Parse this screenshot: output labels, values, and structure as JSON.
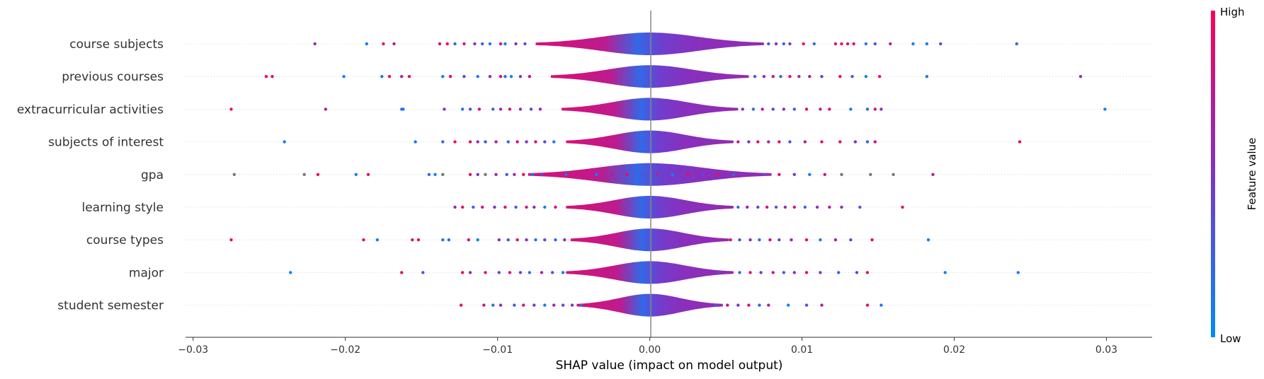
{
  "chart_data": {
    "type": "scatter",
    "subtype": "shap-violin-beeswarm",
    "title": "",
    "xlabel": "SHAP value (impact on model output)",
    "ylabel": "",
    "xlim": [
      -0.0305,
      0.033
    ],
    "xticks": [
      -0.03,
      -0.02,
      -0.01,
      0.0,
      0.01,
      0.02,
      0.03
    ],
    "xtick_labels": [
      "−0.03",
      "−0.02",
      "−0.01",
      "0.00",
      "0.01",
      "0.02",
      "0.03"
    ],
    "grid": false,
    "colorbar": {
      "title": "Feature value",
      "high_label": "High",
      "low_label": "Low",
      "high_color": "#ff0052",
      "low_color": "#008bfb"
    },
    "colors": {
      "high": "#ff0052",
      "low": "#008bfb",
      "mid": "#7b35c9",
      "missing": "#777777"
    },
    "features": [
      {
        "name": "course subjects",
        "spread": 0.0075,
        "points": [
          [
            -0.022,
            0.6
          ],
          [
            -0.0186,
            0.1
          ],
          [
            -0.0175,
            0.9
          ],
          [
            -0.0168,
            0.7
          ],
          [
            -0.0138,
            0.85
          ],
          [
            -0.0133,
            0.95
          ],
          [
            -0.0128,
            0.2
          ],
          [
            -0.0122,
            0.9
          ],
          [
            -0.0115,
            0.5
          ],
          [
            -0.011,
            0.3
          ],
          [
            -0.0105,
            0.1
          ],
          [
            -0.0098,
            0.8
          ],
          [
            -0.0095,
            0.05
          ],
          [
            -0.0088,
            0.6
          ],
          [
            -0.0082,
            0.4
          ],
          [
            0.0078,
            0.3
          ],
          [
            0.0083,
            0.6
          ],
          [
            0.0088,
            0.2
          ],
          [
            0.0092,
            0.5
          ],
          [
            0.0101,
            0.9
          ],
          [
            0.0108,
            0.2
          ],
          [
            0.0122,
            0.85
          ],
          [
            0.0126,
            0.95
          ],
          [
            0.013,
            0.8
          ],
          [
            0.0134,
            0.9
          ],
          [
            0.0142,
            0.1
          ],
          [
            0.0148,
            0.3
          ],
          [
            0.0158,
            0.7
          ],
          [
            0.0173,
            0.1
          ],
          [
            0.0182,
            0.05
          ],
          [
            0.0191,
            0.4
          ],
          [
            0.0241,
            0.2
          ]
        ]
      },
      {
        "name": "previous courses",
        "spread": 0.0065,
        "points": [
          [
            -0.0252,
            0.9
          ],
          [
            -0.0248,
            0.95
          ],
          [
            -0.0201,
            0.05
          ],
          [
            -0.0176,
            0.1
          ],
          [
            -0.0171,
            0.9
          ],
          [
            -0.0163,
            0.6
          ],
          [
            -0.0158,
            0.85
          ],
          [
            -0.0136,
            0.1
          ],
          [
            -0.0131,
            0.9
          ],
          [
            -0.0122,
            0.4
          ],
          [
            -0.0113,
            0.1
          ],
          [
            -0.0105,
            0.6
          ],
          [
            -0.0098,
            0.85
          ],
          [
            -0.0095,
            0.2
          ],
          [
            -0.0091,
            0.05
          ],
          [
            -0.0085,
            0.5
          ],
          [
            -0.0079,
            0.8
          ],
          [
            0.0069,
            0.3
          ],
          [
            0.0075,
            0.6
          ],
          [
            0.0081,
            0.8
          ],
          [
            0.0086,
            0.2
          ],
          [
            0.0092,
            0.9
          ],
          [
            0.0098,
            0.5
          ],
          [
            0.0105,
            0.7
          ],
          [
            0.0113,
            0.4
          ],
          [
            0.0125,
            0.9
          ],
          [
            0.0133,
            0.3
          ],
          [
            0.0142,
            0.05
          ],
          [
            0.0151,
            0.95
          ],
          [
            0.0182,
            0.1
          ],
          [
            0.0283,
            0.6
          ]
        ]
      },
      {
        "name": "extracurricular activities",
        "spread": 0.0058,
        "points": [
          [
            -0.0275,
            0.95
          ],
          [
            -0.0213,
            0.7
          ],
          [
            -0.0163,
            0.1
          ],
          [
            -0.0162,
            0.2
          ],
          [
            -0.0135,
            0.5
          ],
          [
            -0.0123,
            0.1
          ],
          [
            -0.0118,
            0.3
          ],
          [
            -0.0112,
            0.9
          ],
          [
            -0.0103,
            0.2
          ],
          [
            -0.0098,
            0.6
          ],
          [
            -0.0092,
            0.85
          ],
          [
            -0.0085,
            0.5
          ],
          [
            -0.0078,
            0.4
          ],
          [
            -0.0072,
            0.7
          ],
          [
            0.0061,
            0.5
          ],
          [
            0.0068,
            0.2
          ],
          [
            0.0074,
            0.8
          ],
          [
            0.0081,
            0.4
          ],
          [
            0.0088,
            0.6
          ],
          [
            0.0095,
            0.3
          ],
          [
            0.0103,
            0.9
          ],
          [
            0.0112,
            0.7
          ],
          [
            0.0118,
            0.85
          ],
          [
            0.0132,
            0.1
          ],
          [
            0.0143,
            0.2
          ],
          [
            0.0148,
            0.9
          ],
          [
            0.0152,
            0.5
          ],
          [
            0.0299,
            0.05
          ]
        ]
      },
      {
        "name": "subjects of interest",
        "spread": 0.0055,
        "points": [
          [
            -0.024,
            0.05
          ],
          [
            -0.0154,
            0.1
          ],
          [
            -0.0136,
            0.2
          ],
          [
            -0.0128,
            0.9
          ],
          [
            -0.0118,
            0.85
          ],
          [
            -0.0113,
            0.6
          ],
          [
            -0.0108,
            0.3
          ],
          [
            -0.0101,
            0.7
          ],
          [
            -0.0093,
            0.2
          ],
          [
            -0.0087,
            0.9
          ],
          [
            -0.0081,
            0.5
          ],
          [
            -0.0075,
            0.8
          ],
          [
            -0.0069,
            0.4
          ],
          [
            -0.0063,
            0.1
          ],
          [
            0.0058,
            0.8
          ],
          [
            0.0065,
            0.5
          ],
          [
            0.0071,
            0.9
          ],
          [
            0.0078,
            0.6
          ],
          [
            0.0085,
            0.95
          ],
          [
            0.0092,
            0.3
          ],
          [
            0.0102,
            0.7
          ],
          [
            0.0113,
            0.85
          ],
          [
            0.0125,
            0.9
          ],
          [
            0.0135,
            0.5
          ],
          [
            0.0143,
            0.2
          ],
          [
            0.0148,
            0.85
          ],
          [
            0.0243,
            0.95
          ]
        ]
      },
      {
        "name": "gpa",
        "spread": 0.008,
        "points": [
          [
            -0.0273,
            -1
          ],
          [
            -0.0227,
            -1
          ],
          [
            -0.0218,
            0.95
          ],
          [
            -0.0193,
            0.1
          ],
          [
            -0.0185,
            0.9
          ],
          [
            -0.0145,
            0.2
          ],
          [
            -0.0141,
            0.05
          ],
          [
            -0.0136,
            -1
          ],
          [
            -0.0118,
            0.85
          ],
          [
            -0.0113,
            0.5
          ],
          [
            -0.0108,
            -1
          ],
          [
            -0.0101,
            0.7
          ],
          [
            -0.0094,
            0.3
          ],
          [
            -0.0089,
            0.6
          ],
          [
            -0.0083,
            0.9
          ],
          [
            -0.0077,
            0.1
          ],
          [
            -0.0071,
            0.4
          ],
          [
            -0.0063,
            0.8
          ],
          [
            -0.0055,
            0.2
          ],
          [
            -0.0045,
            0.9
          ],
          [
            -0.0035,
            0.05
          ],
          [
            -0.0025,
            0.6
          ],
          [
            -0.0015,
            0.95
          ],
          [
            -0.0005,
            0.3
          ],
          [
            0.0005,
            0.7
          ],
          [
            0.0015,
            0.1
          ],
          [
            0.0025,
            0.9
          ],
          [
            0.0035,
            0.4
          ],
          [
            0.0045,
            0.85
          ],
          [
            0.0055,
            0.2
          ],
          [
            0.0065,
            0.6
          ],
          [
            0.0075,
            0.3
          ],
          [
            0.0085,
            0.9
          ],
          [
            0.0095,
            0.5
          ],
          [
            0.0105,
            0.1
          ],
          [
            0.0115,
            0.8
          ],
          [
            0.0126,
            -1
          ],
          [
            0.0145,
            -1
          ],
          [
            0.016,
            -1
          ],
          [
            0.0186,
            0.7
          ]
        ]
      },
      {
        "name": "learning style",
        "spread": 0.0055,
        "points": [
          [
            -0.0128,
            0.6
          ],
          [
            -0.0123,
            0.9
          ],
          [
            -0.0116,
            0.2
          ],
          [
            -0.011,
            0.85
          ],
          [
            -0.0102,
            0.5
          ],
          [
            -0.0095,
            0.9
          ],
          [
            -0.0088,
            0.3
          ],
          [
            -0.0081,
            0.8
          ],
          [
            -0.0076,
            0.6
          ],
          [
            -0.0069,
            0.1
          ],
          [
            -0.0062,
            0.9
          ],
          [
            0.0058,
            0.2
          ],
          [
            0.0064,
            0.7
          ],
          [
            0.0071,
            0.4
          ],
          [
            0.0077,
            0.9
          ],
          [
            0.0083,
            0.3
          ],
          [
            0.0089,
            0.6
          ],
          [
            0.0095,
            0.85
          ],
          [
            0.0102,
            0.2
          ],
          [
            0.011,
            0.5
          ],
          [
            0.0118,
            0.8
          ],
          [
            0.0126,
            0.6
          ],
          [
            0.0138,
            0.3
          ],
          [
            0.0166,
            0.9
          ]
        ]
      },
      {
        "name": "course types",
        "spread": 0.0052,
        "points": [
          [
            -0.0275,
            0.95
          ],
          [
            -0.0188,
            0.9
          ],
          [
            -0.0179,
            0.05
          ],
          [
            -0.0156,
            0.85
          ],
          [
            -0.0152,
            0.9
          ],
          [
            -0.0136,
            0.1
          ],
          [
            -0.0132,
            0.2
          ],
          [
            -0.0119,
            0.9
          ],
          [
            -0.0113,
            0.05
          ],
          [
            -0.0099,
            0.6
          ],
          [
            -0.0093,
            0.3
          ],
          [
            -0.0087,
            0.85
          ],
          [
            -0.0081,
            0.5
          ],
          [
            -0.0075,
            0.1
          ],
          [
            -0.0069,
            0.4
          ],
          [
            -0.0062,
            0.2
          ],
          [
            -0.0056,
            0.7
          ],
          [
            0.0053,
            0.9
          ],
          [
            0.0059,
            0.3
          ],
          [
            0.0066,
            0.6
          ],
          [
            0.0072,
            0.2
          ],
          [
            0.0079,
            0.85
          ],
          [
            0.0085,
            0.4
          ],
          [
            0.0093,
            0.6
          ],
          [
            0.0103,
            0.9
          ],
          [
            0.0112,
            0.1
          ],
          [
            0.0122,
            0.7
          ],
          [
            0.0132,
            0.4
          ],
          [
            0.0146,
            0.9
          ],
          [
            0.0183,
            0.05
          ]
        ]
      },
      {
        "name": "major",
        "spread": 0.0055,
        "points": [
          [
            -0.0236,
            0.05
          ],
          [
            -0.0163,
            0.9
          ],
          [
            -0.0149,
            0.3
          ],
          [
            -0.0123,
            0.95
          ],
          [
            -0.0118,
            0.6
          ],
          [
            -0.0108,
            0.85
          ],
          [
            -0.0099,
            0.4
          ],
          [
            -0.0092,
            0.9
          ],
          [
            -0.0085,
            0.5
          ],
          [
            -0.0079,
            0.2
          ],
          [
            -0.0071,
            0.7
          ],
          [
            -0.0064,
            0.3
          ],
          [
            -0.0057,
            0.1
          ],
          [
            0.0045,
            0.4
          ],
          [
            0.0052,
            0.6
          ],
          [
            0.0059,
            0.2
          ],
          [
            0.0066,
            0.9
          ],
          [
            0.0073,
            0.5
          ],
          [
            0.0081,
            0.8
          ],
          [
            0.0088,
            0.3
          ],
          [
            0.0095,
            0.6
          ],
          [
            0.0103,
            0.85
          ],
          [
            0.0112,
            0.5
          ],
          [
            0.0124,
            0.2
          ],
          [
            0.0136,
            0.4
          ],
          [
            0.0143,
            0.9
          ],
          [
            0.0194,
            0.05
          ],
          [
            0.0242,
            0.1
          ]
        ]
      },
      {
        "name": "student semester",
        "spread": 0.0048,
        "points": [
          [
            -0.0124,
            0.9
          ],
          [
            -0.0109,
            0.85
          ],
          [
            -0.0103,
            0.2
          ],
          [
            -0.0098,
            0.6
          ],
          [
            -0.0089,
            0.3
          ],
          [
            -0.0083,
            0.8
          ],
          [
            -0.0076,
            0.5
          ],
          [
            -0.0069,
            0.1
          ],
          [
            -0.0063,
            0.7
          ],
          [
            -0.0057,
            0.4
          ],
          [
            -0.0051,
            0.6
          ],
          [
            -0.0045,
            0.2
          ],
          [
            0.0038,
            0.6
          ],
          [
            0.0043,
            0.3
          ],
          [
            0.0051,
            0.8
          ],
          [
            0.0058,
            0.5
          ],
          [
            0.0065,
            0.9
          ],
          [
            0.0072,
            0.2
          ],
          [
            0.0078,
            0.7
          ],
          [
            0.0091,
            0.05
          ],
          [
            0.0103,
            0.4
          ],
          [
            0.0113,
            0.7
          ],
          [
            0.0143,
            0.9
          ],
          [
            0.0152,
            0.1
          ]
        ]
      }
    ]
  }
}
